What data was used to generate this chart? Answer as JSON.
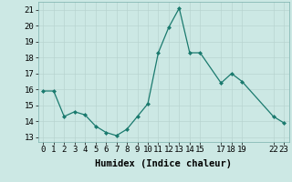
{
  "x": [
    0,
    1,
    2,
    3,
    4,
    5,
    6,
    7,
    8,
    9,
    10,
    11,
    12,
    13,
    14,
    15,
    17,
    18,
    19,
    22,
    23
  ],
  "y": [
    15.9,
    15.9,
    14.3,
    14.6,
    14.4,
    13.7,
    13.3,
    13.1,
    13.5,
    14.3,
    15.1,
    18.3,
    19.9,
    21.1,
    18.3,
    18.3,
    16.4,
    17.0,
    16.5,
    14.3,
    13.9
  ],
  "xticks": [
    0,
    1,
    2,
    3,
    4,
    5,
    6,
    7,
    8,
    9,
    10,
    11,
    12,
    13,
    14,
    15,
    17,
    18,
    19,
    22,
    23
  ],
  "xtick_labels": [
    "0",
    "1",
    "2",
    "3",
    "4",
    "5",
    "6",
    "7",
    "8",
    "9",
    "10",
    "11",
    "12",
    "13",
    "14",
    "15",
    "17",
    "18",
    "19",
    "22",
    "23"
  ],
  "yticks": [
    13,
    14,
    15,
    16,
    17,
    18,
    19,
    20,
    21
  ],
  "ylim": [
    12.7,
    21.5
  ],
  "xlim": [
    -0.5,
    23.5
  ],
  "xlabel": "Humidex (Indice chaleur)",
  "line_color": "#1a7a6e",
  "marker": "D",
  "marker_size": 2.0,
  "bg_color": "#cce8e4",
  "grid_color": "#b8d4d0",
  "tick_fontsize": 6.5,
  "xlabel_fontsize": 7.5
}
